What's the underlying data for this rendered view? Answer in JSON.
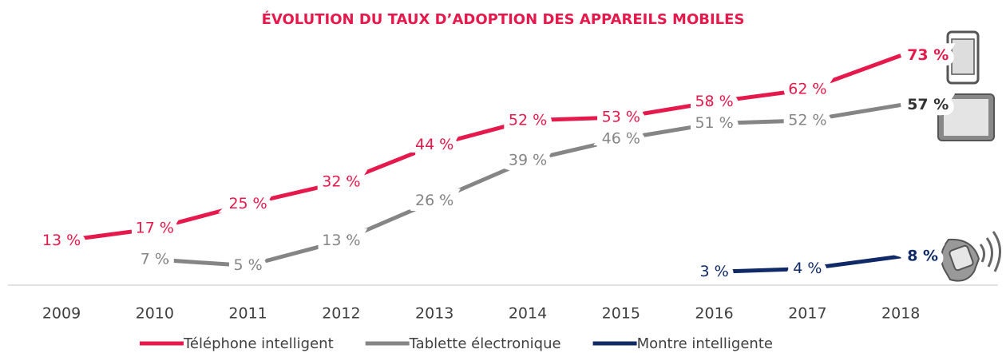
{
  "chart_data": {
    "type": "line",
    "title": "ÉVOLUTION DU TAUX D’ADOPTION DES APPAREILS MOBILES",
    "categories": [
      "2009",
      "2010",
      "2011",
      "2012",
      "2013",
      "2014",
      "2015",
      "2016",
      "2017",
      "2018"
    ],
    "series": [
      {
        "name": "Téléphone intelligent",
        "color": "#e5194b",
        "values": [
          13,
          17,
          25,
          32,
          44,
          52,
          53,
          58,
          62,
          73
        ],
        "value_labels": [
          "13 %",
          "17 %",
          "25 %",
          "32 %",
          "44 %",
          "52 %",
          "53 %",
          "58 %",
          "62 %",
          "73 %"
        ]
      },
      {
        "name": "Tablette électronique",
        "color": "#858585",
        "values": [
          null,
          7,
          5,
          13,
          26,
          39,
          46,
          51,
          52,
          57
        ],
        "value_labels": [
          null,
          "7 %",
          "5 %",
          "13 %",
          "26 %",
          "39 %",
          "46 %",
          "51 %",
          "52 %",
          "57 %"
        ]
      },
      {
        "name": "Montre intelligente",
        "color": "#0f2a66",
        "values": [
          null,
          null,
          null,
          null,
          null,
          null,
          null,
          3,
          4,
          8
        ],
        "value_labels": [
          null,
          null,
          null,
          null,
          null,
          null,
          null,
          "3 %",
          "4 %",
          "8 %"
        ]
      }
    ]
  }
}
